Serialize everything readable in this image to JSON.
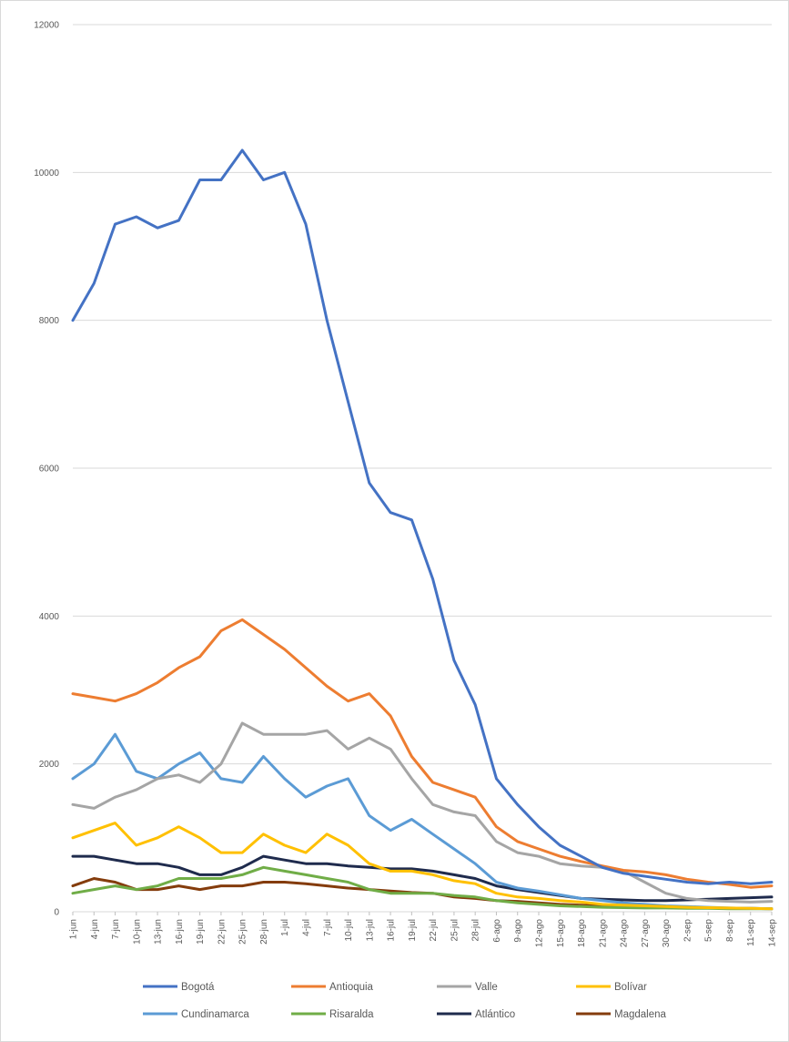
{
  "chart_data": {
    "type": "line",
    "title": "",
    "xlabel": "",
    "ylabel": "",
    "ylim": [
      0,
      12000
    ],
    "yticks": [
      "0",
      "2000",
      "4000",
      "6000",
      "8000",
      "10000",
      "12000"
    ],
    "grid": true,
    "legend_position": "bottom",
    "x_start": "1-jun",
    "x_end": "14-sep",
    "x_tick_labels": [
      "1-jun",
      "4-jun",
      "7-jun",
      "10-jun",
      "13-jun",
      "16-jun",
      "19-jun",
      "22-jun",
      "25-jun",
      "28-jun",
      "1-jul",
      "4-jul",
      "7-jul",
      "10-jul",
      "13-jul",
      "16-jul",
      "19-jul",
      "22-jul",
      "25-jul",
      "28-jul",
      "6-ago",
      "9-ago",
      "12-ago",
      "15-ago",
      "18-ago",
      "21-ago",
      "24-ago",
      "27-ago",
      "30-ago",
      "2-sep",
      "5-sep",
      "8-sep",
      "11-sep",
      "14-sep"
    ],
    "series": [
      {
        "name": "Bogotá",
        "color": "#4472c4",
        "points": [
          [
            "1-jun",
            8000
          ],
          [
            "4-jun",
            8500
          ],
          [
            "7-jun",
            9300
          ],
          [
            "10-jun",
            9400
          ],
          [
            "13-jun",
            9250
          ],
          [
            "16-jun",
            9350
          ],
          [
            "19-jun",
            9900
          ],
          [
            "22-jun",
            9900
          ],
          [
            "25-jun",
            10300
          ],
          [
            "28-jun",
            9900
          ],
          [
            "1-jul",
            10000
          ],
          [
            "4-jul",
            9300
          ],
          [
            "7-jul",
            8000
          ],
          [
            "10-jul",
            6900
          ],
          [
            "13-jul",
            5800
          ],
          [
            "16-jul",
            5400
          ],
          [
            "19-jul",
            5300
          ],
          [
            "22-jul",
            4500
          ],
          [
            "25-jul",
            3400
          ],
          [
            "28-jul",
            2800
          ],
          [
            "6-ago",
            1800
          ],
          [
            "9-ago",
            1450
          ],
          [
            "12-ago",
            1150
          ],
          [
            "15-ago",
            900
          ],
          [
            "18-ago",
            750
          ],
          [
            "21-ago",
            600
          ],
          [
            "24-ago",
            520
          ],
          [
            "27-ago",
            480
          ],
          [
            "30-ago",
            440
          ],
          [
            "2-sep",
            400
          ],
          [
            "5-sep",
            380
          ],
          [
            "8-sep",
            400
          ],
          [
            "11-sep",
            380
          ],
          [
            "14-sep",
            400
          ]
        ]
      },
      {
        "name": "Antioquia",
        "color": "#ed7d31",
        "points": [
          [
            "1-jun",
            2950
          ],
          [
            "4-jun",
            2900
          ],
          [
            "7-jun",
            2850
          ],
          [
            "10-jun",
            2950
          ],
          [
            "13-jun",
            3100
          ],
          [
            "16-jun",
            3300
          ],
          [
            "19-jun",
            3450
          ],
          [
            "22-jun",
            3800
          ],
          [
            "25-jun",
            3950
          ],
          [
            "28-jun",
            3750
          ],
          [
            "1-jul",
            3550
          ],
          [
            "4-jul",
            3300
          ],
          [
            "7-jul",
            3050
          ],
          [
            "10-jul",
            2850
          ],
          [
            "13-jul",
            2950
          ],
          [
            "16-jul",
            2650
          ],
          [
            "19-jul",
            2100
          ],
          [
            "22-jul",
            1750
          ],
          [
            "25-jul",
            1650
          ],
          [
            "28-jul",
            1550
          ],
          [
            "6-ago",
            1150
          ],
          [
            "9-ago",
            950
          ],
          [
            "12-ago",
            850
          ],
          [
            "15-ago",
            750
          ],
          [
            "18-ago",
            680
          ],
          [
            "21-ago",
            620
          ],
          [
            "24-ago",
            560
          ],
          [
            "27-ago",
            540
          ],
          [
            "30-ago",
            500
          ],
          [
            "2-sep",
            440
          ],
          [
            "5-sep",
            400
          ],
          [
            "8-sep",
            370
          ],
          [
            "11-sep",
            330
          ],
          [
            "14-sep",
            350
          ]
        ]
      },
      {
        "name": "Valle",
        "color": "#a5a5a5",
        "points": [
          [
            "1-jun",
            1450
          ],
          [
            "4-jun",
            1400
          ],
          [
            "7-jun",
            1550
          ],
          [
            "10-jun",
            1650
          ],
          [
            "13-jun",
            1800
          ],
          [
            "16-jun",
            1850
          ],
          [
            "19-jun",
            1750
          ],
          [
            "22-jun",
            2000
          ],
          [
            "25-jun",
            2550
          ],
          [
            "28-jun",
            2400
          ],
          [
            "1-jul",
            2400
          ],
          [
            "4-jul",
            2400
          ],
          [
            "7-jul",
            2450
          ],
          [
            "10-jul",
            2200
          ],
          [
            "13-jul",
            2350
          ],
          [
            "16-jul",
            2200
          ],
          [
            "19-jul",
            1800
          ],
          [
            "22-jul",
            1450
          ],
          [
            "25-jul",
            1350
          ],
          [
            "28-jul",
            1300
          ],
          [
            "6-ago",
            950
          ],
          [
            "9-ago",
            800
          ],
          [
            "12-ago",
            750
          ],
          [
            "15-ago",
            650
          ],
          [
            "18-ago",
            620
          ],
          [
            "21-ago",
            600
          ],
          [
            "24-ago",
            550
          ],
          [
            "27-ago",
            400
          ],
          [
            "30-ago",
            250
          ],
          [
            "2-sep",
            180
          ],
          [
            "5-sep",
            150
          ],
          [
            "8-sep",
            140
          ],
          [
            "11-sep",
            130
          ],
          [
            "14-sep",
            140
          ]
        ]
      },
      {
        "name": "Bolívar",
        "color": "#ffc000",
        "points": [
          [
            "1-jun",
            1000
          ],
          [
            "4-jun",
            1100
          ],
          [
            "7-jun",
            1200
          ],
          [
            "10-jun",
            900
          ],
          [
            "13-jun",
            1000
          ],
          [
            "16-jun",
            1150
          ],
          [
            "19-jun",
            1000
          ],
          [
            "22-jun",
            800
          ],
          [
            "25-jun",
            800
          ],
          [
            "28-jun",
            1050
          ],
          [
            "1-jul",
            900
          ],
          [
            "4-jul",
            800
          ],
          [
            "7-jul",
            1050
          ],
          [
            "10-jul",
            900
          ],
          [
            "13-jul",
            650
          ],
          [
            "16-jul",
            550
          ],
          [
            "19-jul",
            550
          ],
          [
            "22-jul",
            500
          ],
          [
            "25-jul",
            420
          ],
          [
            "28-jul",
            380
          ],
          [
            "6-ago",
            250
          ],
          [
            "9-ago",
            200
          ],
          [
            "12-ago",
            180
          ],
          [
            "15-ago",
            150
          ],
          [
            "18-ago",
            130
          ],
          [
            "21-ago",
            100
          ],
          [
            "24-ago",
            90
          ],
          [
            "27-ago",
            80
          ],
          [
            "30-ago",
            70
          ],
          [
            "2-sep",
            60
          ],
          [
            "5-sep",
            55
          ],
          [
            "8-sep",
            50
          ],
          [
            "11-sep",
            45
          ],
          [
            "14-sep",
            40
          ]
        ]
      },
      {
        "name": "Cundinamarca",
        "color": "#5b9bd5",
        "points": [
          [
            "1-jun",
            1800
          ],
          [
            "4-jun",
            2000
          ],
          [
            "7-jun",
            2400
          ],
          [
            "10-jun",
            1900
          ],
          [
            "13-jun",
            1800
          ],
          [
            "16-jun",
            2000
          ],
          [
            "19-jun",
            2150
          ],
          [
            "22-jun",
            1800
          ],
          [
            "25-jun",
            1750
          ],
          [
            "28-jun",
            2100
          ],
          [
            "1-jul",
            1800
          ],
          [
            "4-jul",
            1550
          ],
          [
            "7-jul",
            1700
          ],
          [
            "10-jul",
            1800
          ],
          [
            "13-jul",
            1300
          ],
          [
            "16-jul",
            1100
          ],
          [
            "19-jul",
            1250
          ],
          [
            "22-jul",
            1050
          ],
          [
            "25-jul",
            850
          ],
          [
            "28-jul",
            650
          ],
          [
            "6-ago",
            400
          ],
          [
            "9-ago",
            320
          ],
          [
            "12-ago",
            280
          ],
          [
            "15-ago",
            230
          ],
          [
            "18-ago",
            180
          ],
          [
            "21-ago",
            150
          ],
          [
            "24-ago",
            120
          ],
          [
            "27-ago",
            100
          ],
          [
            "30-ago",
            80
          ],
          [
            "2-sep",
            70
          ],
          [
            "5-sep",
            60
          ],
          [
            "8-sep",
            50
          ],
          [
            "11-sep",
            45
          ],
          [
            "14-sep",
            40
          ]
        ]
      },
      {
        "name": "Risaralda",
        "color": "#70ad47",
        "points": [
          [
            "1-jun",
            250
          ],
          [
            "4-jun",
            300
          ],
          [
            "7-jun",
            350
          ],
          [
            "10-jun",
            300
          ],
          [
            "13-jun",
            350
          ],
          [
            "16-jun",
            450
          ],
          [
            "19-jun",
            450
          ],
          [
            "22-jun",
            450
          ],
          [
            "25-jun",
            500
          ],
          [
            "28-jun",
            600
          ],
          [
            "1-jul",
            550
          ],
          [
            "4-jul",
            500
          ],
          [
            "7-jul",
            450
          ],
          [
            "10-jul",
            400
          ],
          [
            "13-jul",
            300
          ],
          [
            "16-jul",
            250
          ],
          [
            "19-jul",
            250
          ],
          [
            "22-jul",
            250
          ],
          [
            "25-jul",
            220
          ],
          [
            "28-jul",
            200
          ],
          [
            "6-ago",
            150
          ],
          [
            "9-ago",
            120
          ],
          [
            "12-ago",
            100
          ],
          [
            "15-ago",
            80
          ],
          [
            "18-ago",
            70
          ],
          [
            "21-ago",
            60
          ],
          [
            "24-ago",
            55
          ],
          [
            "27-ago",
            50
          ],
          [
            "30-ago",
            50
          ],
          [
            "2-sep",
            45
          ],
          [
            "5-sep",
            45
          ],
          [
            "8-sep",
            40
          ],
          [
            "11-sep",
            40
          ],
          [
            "14-sep",
            40
          ]
        ]
      },
      {
        "name": "Atlántico",
        "color": "#1f2b4d",
        "points": [
          [
            "1-jun",
            750
          ],
          [
            "4-jun",
            750
          ],
          [
            "7-jun",
            700
          ],
          [
            "10-jun",
            650
          ],
          [
            "13-jun",
            650
          ],
          [
            "16-jun",
            600
          ],
          [
            "19-jun",
            500
          ],
          [
            "22-jun",
            500
          ],
          [
            "25-jun",
            600
          ],
          [
            "28-jun",
            750
          ],
          [
            "1-jul",
            700
          ],
          [
            "4-jul",
            650
          ],
          [
            "7-jul",
            650
          ],
          [
            "10-jul",
            620
          ],
          [
            "13-jul",
            600
          ],
          [
            "16-jul",
            580
          ],
          [
            "19-jul",
            580
          ],
          [
            "22-jul",
            550
          ],
          [
            "25-jul",
            500
          ],
          [
            "28-jul",
            450
          ],
          [
            "6-ago",
            350
          ],
          [
            "9-ago",
            300
          ],
          [
            "12-ago",
            260
          ],
          [
            "15-ago",
            220
          ],
          [
            "18-ago",
            180
          ],
          [
            "21-ago",
            170
          ],
          [
            "24-ago",
            160
          ],
          [
            "27-ago",
            150
          ],
          [
            "30-ago",
            150
          ],
          [
            "2-sep",
            160
          ],
          [
            "5-sep",
            170
          ],
          [
            "8-sep",
            180
          ],
          [
            "11-sep",
            190
          ],
          [
            "14-sep",
            200
          ]
        ]
      },
      {
        "name": "Magdalena",
        "color": "#843c0c",
        "points": [
          [
            "1-jun",
            350
          ],
          [
            "4-jun",
            450
          ],
          [
            "7-jun",
            400
          ],
          [
            "10-jun",
            300
          ],
          [
            "13-jun",
            300
          ],
          [
            "16-jun",
            350
          ],
          [
            "19-jun",
            300
          ],
          [
            "22-jun",
            350
          ],
          [
            "25-jun",
            350
          ],
          [
            "28-jun",
            400
          ],
          [
            "1-jul",
            400
          ],
          [
            "4-jul",
            380
          ],
          [
            "7-jul",
            350
          ],
          [
            "10-jul",
            320
          ],
          [
            "13-jul",
            300
          ],
          [
            "16-jul",
            280
          ],
          [
            "19-jul",
            260
          ],
          [
            "22-jul",
            250
          ],
          [
            "25-jul",
            200
          ],
          [
            "28-jul",
            180
          ],
          [
            "6-ago",
            150
          ],
          [
            "9-ago",
            140
          ],
          [
            "12-ago",
            120
          ],
          [
            "15-ago",
            100
          ],
          [
            "18-ago",
            90
          ],
          [
            "21-ago",
            80
          ],
          [
            "24-ago",
            70
          ],
          [
            "27-ago",
            60
          ],
          [
            "30-ago",
            55
          ],
          [
            "2-sep",
            50
          ],
          [
            "5-sep",
            50
          ],
          [
            "8-sep",
            45
          ],
          [
            "11-sep",
            45
          ],
          [
            "14-sep",
            40
          ]
        ]
      }
    ]
  }
}
